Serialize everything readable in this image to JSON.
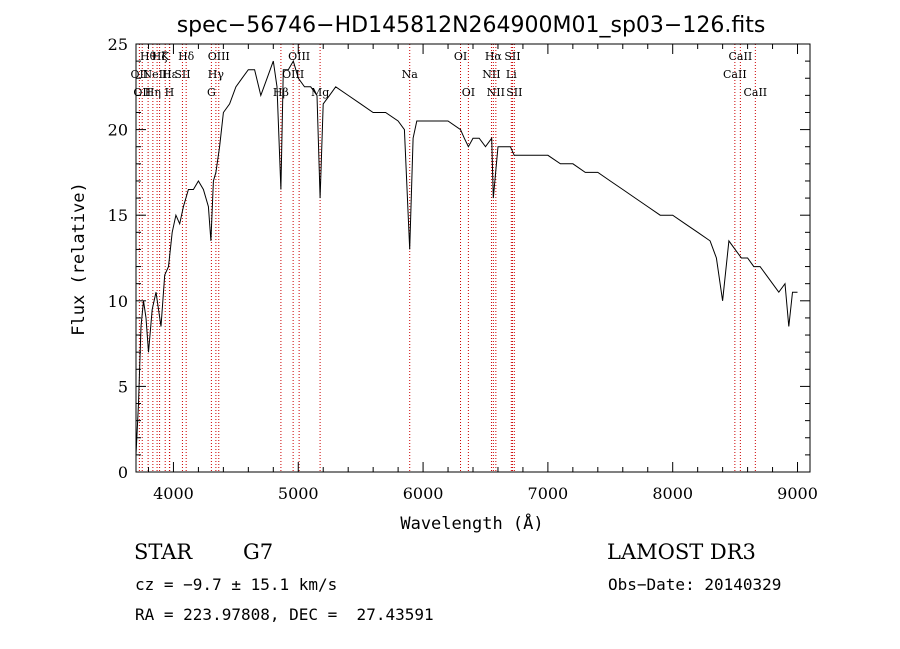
{
  "chart_data": {
    "type": "line",
    "title": "spec−56746−HD145812N264900M01_sp03−126.fits",
    "xlabel": "Wavelength (Å)",
    "ylabel": "Flux (relative)",
    "xlim": [
      3700,
      9100
    ],
    "ylim": [
      0,
      25
    ],
    "x_ticks": [
      4000,
      5000,
      6000,
      7000,
      8000,
      9000
    ],
    "y_ticks": [
      0,
      5,
      10,
      15,
      20,
      25
    ],
    "grid": false,
    "series": [
      {
        "x": [
          3700,
          3720,
          3740,
          3760,
          3780,
          3800,
          3830,
          3860,
          3900,
          3930,
          3960,
          3990,
          4020,
          4050,
          4080,
          4120,
          4160,
          4200,
          4240,
          4280,
          4300,
          4320,
          4340,
          4370,
          4400,
          4450,
          4500,
          4550,
          4600,
          4650,
          4700,
          4750,
          4800,
          4830,
          4861,
          4880,
          4920,
          4960,
          5000,
          5050,
          5100,
          5150,
          5175,
          5200,
          5250,
          5300,
          5400,
          5500,
          5600,
          5700,
          5800,
          5850,
          5893,
          5920,
          5950,
          6000,
          6100,
          6200,
          6300,
          6330,
          6363,
          6400,
          6450,
          6500,
          6550,
          6563,
          6600,
          6650,
          6700,
          6730,
          6800,
          6900,
          7000,
          7100,
          7200,
          7300,
          7400,
          7500,
          7600,
          7700,
          7800,
          7900,
          8000,
          8100,
          8200,
          8300,
          8350,
          8400,
          8450,
          8500,
          8550,
          8600,
          8650,
          8700,
          8750,
          8800,
          8850,
          8900,
          8930,
          8960,
          9000
        ],
        "y": [
          1.0,
          4.0,
          8.5,
          10.0,
          9.0,
          7.0,
          9.5,
          10.5,
          8.5,
          11.5,
          12.0,
          14.0,
          15.0,
          14.5,
          15.5,
          16.5,
          16.5,
          17.0,
          16.5,
          15.5,
          13.5,
          17.0,
          17.5,
          19.0,
          21.0,
          21.5,
          22.5,
          23.0,
          23.5,
          23.5,
          22.0,
          23.0,
          24.0,
          22.5,
          16.5,
          23.5,
          23.5,
          24.0,
          23.0,
          22.5,
          22.5,
          22.0,
          16.0,
          21.5,
          22.0,
          22.5,
          22.0,
          21.5,
          21.0,
          21.0,
          20.5,
          20.0,
          13.0,
          19.5,
          20.5,
          20.5,
          20.5,
          20.5,
          20.0,
          19.5,
          19.0,
          19.5,
          19.5,
          19.0,
          19.5,
          16.0,
          19.0,
          19.0,
          19.0,
          18.5,
          18.5,
          18.5,
          18.5,
          18.0,
          18.0,
          17.5,
          17.5,
          17.0,
          16.5,
          16.0,
          15.5,
          15.0,
          15.0,
          14.5,
          14.0,
          13.5,
          12.5,
          10.0,
          13.5,
          13.0,
          12.5,
          12.5,
          12.0,
          12.0,
          11.5,
          11.0,
          10.5,
          11.0,
          8.5,
          10.5,
          10.5
        ]
      }
    ],
    "line_markers": [
      {
        "wl": 3727,
        "label": "OII",
        "row": 1
      },
      {
        "wl": 3750,
        "label": "OII",
        "row": 2
      },
      {
        "wl": 3797,
        "label": "Hθ",
        "row": 0
      },
      {
        "wl": 3835,
        "label": "Hη",
        "row": 2
      },
      {
        "wl": 3869,
        "label": "NeIII",
        "row": 1
      },
      {
        "wl": 3889,
        "label": "Hζ",
        "row": 0
      },
      {
        "wl": 3934,
        "label": "K",
        "row": 0
      },
      {
        "wl": 3968,
        "label": "H",
        "row": 2
      },
      {
        "wl": 3970,
        "label": "Hε",
        "row": 1
      },
      {
        "wl": 4072,
        "label": "SII",
        "row": 1
      },
      {
        "wl": 4102,
        "label": "Hδ",
        "row": 0
      },
      {
        "wl": 4304,
        "label": "G",
        "row": 2
      },
      {
        "wl": 4340,
        "label": "Hγ",
        "row": 1
      },
      {
        "wl": 4363,
        "label": "OIII",
        "row": 0
      },
      {
        "wl": 4861,
        "label": "Hβ",
        "row": 2
      },
      {
        "wl": 4959,
        "label": "OIII",
        "row": 1
      },
      {
        "wl": 5007,
        "label": "OIII",
        "row": 0
      },
      {
        "wl": 5175,
        "label": "Mg",
        "row": 2
      },
      {
        "wl": 5893,
        "label": "Na",
        "row": 1
      },
      {
        "wl": 6300,
        "label": "OI",
        "row": 0
      },
      {
        "wl": 6363,
        "label": "OI",
        "row": 2
      },
      {
        "wl": 6548,
        "label": "NII",
        "row": 1
      },
      {
        "wl": 6563,
        "label": "Hα",
        "row": 0
      },
      {
        "wl": 6583,
        "label": "NII",
        "row": 2
      },
      {
        "wl": 6707,
        "label": "Li",
        "row": 1
      },
      {
        "wl": 6716,
        "label": "SII",
        "row": 0
      },
      {
        "wl": 6731,
        "label": "SII",
        "row": 2
      },
      {
        "wl": 8498,
        "label": "CaII",
        "row": 1
      },
      {
        "wl": 8542,
        "label": "CaII",
        "row": 0
      },
      {
        "wl": 8662,
        "label": "CaII",
        "row": 2
      }
    ],
    "marker_color": "#cc0000",
    "line_color": "#000000"
  },
  "footer": {
    "object_type": "STAR",
    "subclass": "G7",
    "survey": "LAMOST DR3",
    "cz": "cz = −9.7 ± 15.1 km/s",
    "obs_date": "Obs−Date: 20140329",
    "coords": "RA = 223.97808, DEC =  27.43591"
  }
}
